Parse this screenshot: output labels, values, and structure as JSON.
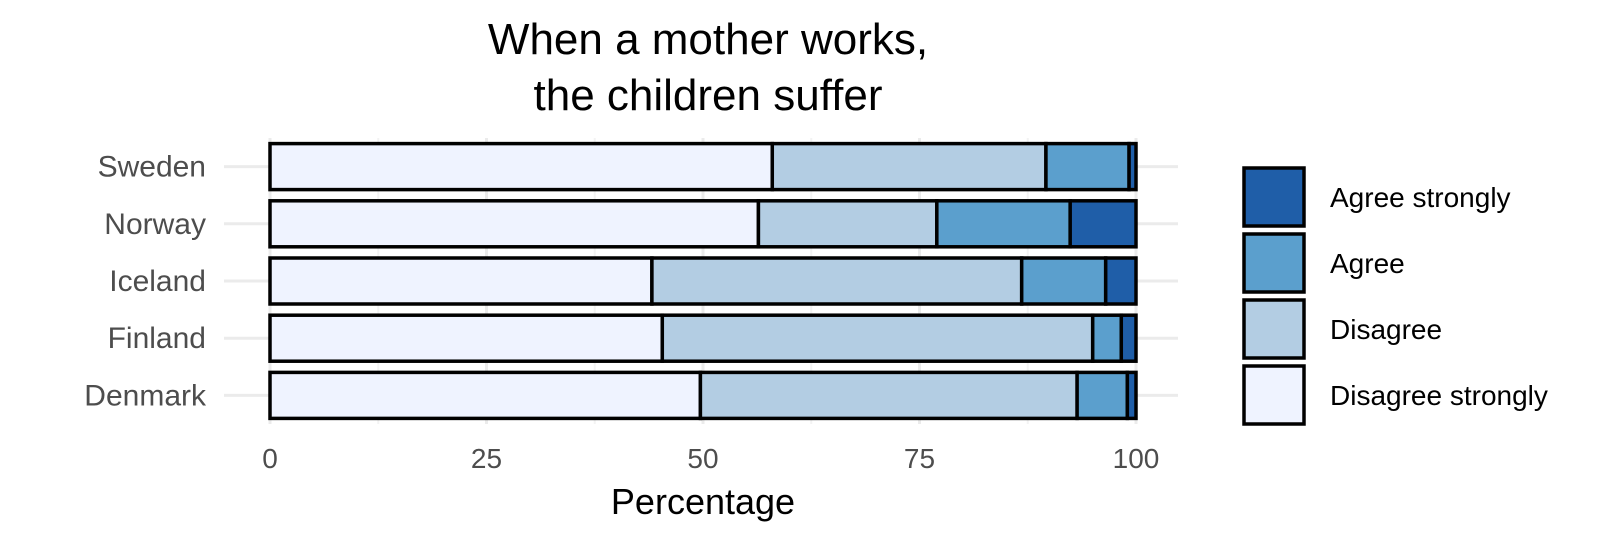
{
  "chart_data": {
    "type": "bar",
    "orientation": "horizontal",
    "stacked": true,
    "title": "When a mother works,\n the children suffer",
    "title_lines": [
      "When a mother works,",
      "the children suffer"
    ],
    "xlabel": "Percentage",
    "ylabel": "",
    "xlim": [
      0,
      100
    ],
    "x_ticks": [
      0,
      25,
      50,
      75,
      100
    ],
    "grid": true,
    "legend_position": "right",
    "categories": [
      "Sweden",
      "Norway",
      "Iceland",
      "Finland",
      "Denmark"
    ],
    "series": [
      {
        "name": "Disagree strongly",
        "color": "#eff3ff",
        "values": [
          58,
          56.4,
          44.1,
          45.3,
          49.7
        ]
      },
      {
        "name": "Disagree",
        "color": "#b3cde3",
        "values": [
          31.6,
          20.6,
          42.7,
          49.7,
          43.5
        ]
      },
      {
        "name": "Agree",
        "color": "#5b9fcd",
        "values": [
          9.6,
          15.4,
          9.7,
          3.3,
          5.8
        ]
      },
      {
        "name": "Agree strongly",
        "color": "#1f5ea8",
        "values": [
          0.8,
          7.6,
          3.5,
          1.7,
          1.0
        ]
      }
    ],
    "legend_order": [
      "Agree strongly",
      "Agree",
      "Disagree",
      "Disagree strongly"
    ]
  }
}
